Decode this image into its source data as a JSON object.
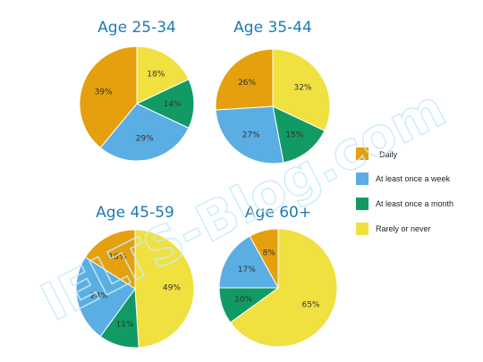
{
  "chart_data": [
    {
      "type": "pie",
      "title": "Age 25-34",
      "slices": [
        {
          "label": "Daily",
          "value": 39,
          "text": "39%"
        },
        {
          "label": "At least once a week",
          "value": 29,
          "text": "29%"
        },
        {
          "label": "At least once a month",
          "value": 14,
          "text": "14%"
        },
        {
          "label": "Rarely or never",
          "value": 18,
          "text": "18%"
        }
      ]
    },
    {
      "type": "pie",
      "title": "Age 35-44",
      "slices": [
        {
          "label": "Daily",
          "value": 26,
          "text": "26%"
        },
        {
          "label": "At least once a week",
          "value": 27,
          "text": "27%"
        },
        {
          "label": "At least once a month",
          "value": 15,
          "text": "15%"
        },
        {
          "label": "Rarely or never",
          "value": 32,
          "text": "32%"
        }
      ]
    },
    {
      "type": "pie",
      "title": "Age 45-59",
      "slices": [
        {
          "label": "Daily",
          "value": 16,
          "text": "16%"
        },
        {
          "label": "At least once a week",
          "value": 24,
          "text": "24%"
        },
        {
          "label": "At least once a month",
          "value": 11,
          "text": "11%"
        },
        {
          "label": "Rarely or never",
          "value": 49,
          "text": "49%"
        }
      ]
    },
    {
      "type": "pie",
      "title": "Age 60+",
      "slices": [
        {
          "label": "Daily",
          "value": 8,
          "text": "8%"
        },
        {
          "label": "At least once a week",
          "value": 17,
          "text": "17%"
        },
        {
          "label": "At least once a month",
          "value": 10,
          "text": "10%"
        },
        {
          "label": "Rarely or never",
          "value": 65,
          "text": "65%"
        }
      ]
    }
  ],
  "legend": [
    {
      "label": "Daily",
      "color": "#e5a00d"
    },
    {
      "label": "At least once a week",
      "color": "#5aaee3"
    },
    {
      "label": "At least once a month",
      "color": "#129a64"
    },
    {
      "label": "Rarely or never",
      "color": "#f0e040"
    }
  ],
  "watermark": "IELTS-Blog.com"
}
